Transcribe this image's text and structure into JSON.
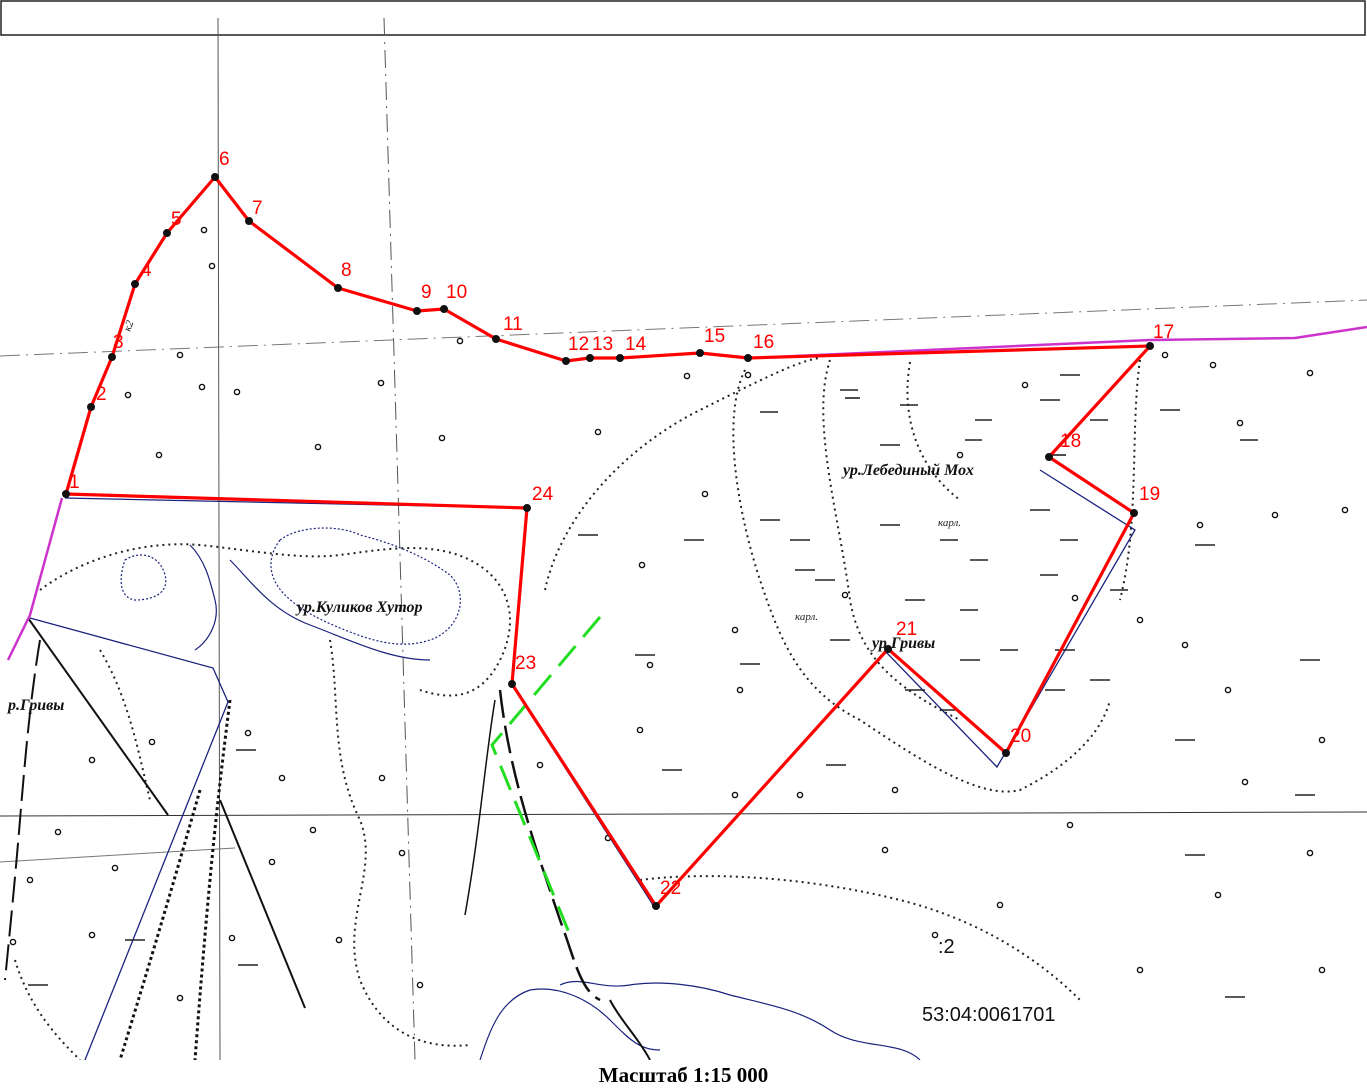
{
  "header_box": {
    "text": ""
  },
  "map": {
    "boundary_color": "#ff0000",
    "neighbor_boundary_color": "#cc33cc",
    "proposed_line_color": "#22dd22",
    "contour_color": "#1a237e",
    "label_color": "#ff0000"
  },
  "points": [
    "1",
    "2",
    "3",
    "4",
    "5",
    "6",
    "7",
    "8",
    "9",
    "10",
    "11",
    "12",
    "13",
    "14",
    "15",
    "16",
    "17",
    "18",
    "19",
    "20",
    "21",
    "22",
    "23",
    "24"
  ],
  "places": {
    "kulikov": "ур.Куликов Хутор",
    "lebediny": "ур.Лебединый Мох",
    "grivy_mid": "ур.Гривы",
    "grivy_left": "р.Гривы",
    "karl1": "карл.",
    "karl2": "карл.",
    "k2": "к2",
    "plot_num": ":2"
  },
  "cadastral_number": "53:04:0061701",
  "scale_caption": "Масштаб 1:15 000"
}
